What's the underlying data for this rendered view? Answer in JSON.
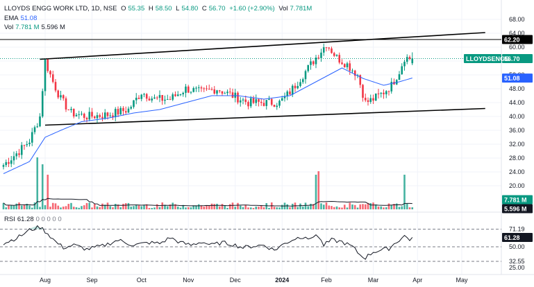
{
  "header": {
    "symbol_line": "LLOYDS ENGG WORK LTD, 1D, NSE",
    "open_label": "O",
    "open": "55.35",
    "high_label": "H",
    "high": "58.50",
    "low_label": "L",
    "low": "54.80",
    "close_label": "C",
    "close": "56.70",
    "change": "+1.60 (+2.90%)",
    "vol_label": "Vol",
    "vol": "7.781M"
  },
  "ema_legend": {
    "label": "EMA",
    "value": "51.08"
  },
  "vol_legend": {
    "label": "Vol",
    "value": "7.781 M",
    "ma": "5.596 M"
  },
  "rsi_legend": {
    "label": "RSI",
    "value": "61.28",
    "extra": "0  0  0  0  0"
  },
  "price_axis_ticks": [
    "68.00",
    "64.00",
    "60.00",
    "56.00",
    "52.00",
    "48.00",
    "44.00",
    "40.00",
    "36.00",
    "32.00",
    "28.00",
    "24.00",
    "20.00"
  ],
  "rsi_axis_ticks": [
    "71.19",
    "50.00",
    "32.55",
    "25.00"
  ],
  "tags": {
    "resistance": "62.20",
    "last_name": "LLOYDSENGG",
    "last_price": "56.70",
    "ema": "51.08",
    "volume": "7.781 M",
    "volume_ma": "5.596 M",
    "rsi": "61.28"
  },
  "time_axis": [
    "Aug",
    "Sep",
    "Oct",
    "Nov",
    "Dec",
    "2024",
    "Feb",
    "Mar",
    "Apr",
    "May"
  ],
  "colors": {
    "up": "#089981",
    "down": "#f23645",
    "ema": "#2962ff",
    "rsi": "#131722",
    "trendline": "#000000",
    "text": "#131722"
  },
  "chart_data": {
    "type": "candlestick",
    "title": "LLOYDS ENGG WORK LTD, 1D, NSE",
    "ylim": [
      18,
      70
    ],
    "rsi_ylim": [
      20,
      80
    ],
    "x_months": [
      "Aug",
      "Sep",
      "Oct",
      "Nov",
      "Dec",
      "2024",
      "Feb",
      "Mar",
      "Apr",
      "May"
    ],
    "last_ohlc": {
      "open": 55.35,
      "high": 58.5,
      "low": 54.8,
      "close": 56.7
    },
    "close_anchors": [
      [
        0,
        26
      ],
      [
        3,
        28
      ],
      [
        6,
        30
      ],
      [
        10,
        33
      ],
      [
        14,
        40
      ],
      [
        16,
        56
      ],
      [
        19,
        50
      ],
      [
        22,
        45
      ],
      [
        26,
        41
      ],
      [
        32,
        40
      ],
      [
        40,
        40.5
      ],
      [
        48,
        42
      ],
      [
        53,
        47
      ],
      [
        58,
        45
      ],
      [
        64,
        45
      ],
      [
        70,
        48
      ],
      [
        76,
        47
      ],
      [
        82,
        48
      ],
      [
        88,
        46
      ],
      [
        94,
        44
      ],
      [
        100,
        44
      ],
      [
        106,
        44
      ],
      [
        110,
        47
      ],
      [
        116,
        53
      ],
      [
        120,
        57
      ],
      [
        124,
        61
      ],
      [
        128,
        57
      ],
      [
        132,
        55
      ],
      [
        136,
        52
      ],
      [
        139,
        44
      ],
      [
        142,
        45
      ],
      [
        146,
        47
      ],
      [
        149,
        49
      ],
      [
        152,
        53
      ],
      [
        154,
        57
      ],
      [
        157,
        56.7
      ]
    ],
    "ema_anchors": [
      [
        0,
        23.5
      ],
      [
        10,
        27
      ],
      [
        16,
        34
      ],
      [
        22,
        36
      ],
      [
        30,
        38.5
      ],
      [
        40,
        39.5
      ],
      [
        50,
        41
      ],
      [
        60,
        42
      ],
      [
        70,
        44
      ],
      [
        80,
        46
      ],
      [
        90,
        46
      ],
      [
        100,
        45
      ],
      [
        110,
        46
      ],
      [
        120,
        50
      ],
      [
        130,
        54
      ],
      [
        138,
        51
      ],
      [
        146,
        49
      ],
      [
        152,
        50
      ],
      [
        157,
        51.1
      ]
    ],
    "rsi_anchors": [
      [
        0,
        54
      ],
      [
        6,
        62
      ],
      [
        10,
        70
      ],
      [
        14,
        74
      ],
      [
        17,
        66
      ],
      [
        20,
        56
      ],
      [
        23,
        49
      ],
      [
        27,
        52
      ],
      [
        32,
        47
      ],
      [
        38,
        51
      ],
      [
        44,
        58
      ],
      [
        50,
        52
      ],
      [
        56,
        55
      ],
      [
        60,
        54
      ],
      [
        64,
        61
      ],
      [
        68,
        55
      ],
      [
        72,
        52
      ],
      [
        76,
        56
      ],
      [
        80,
        52
      ],
      [
        84,
        55
      ],
      [
        88,
        53
      ],
      [
        92,
        49
      ],
      [
        96,
        51
      ],
      [
        100,
        52
      ],
      [
        104,
        46
      ],
      [
        108,
        54
      ],
      [
        112,
        60
      ],
      [
        116,
        63
      ],
      [
        118,
        58
      ],
      [
        120,
        66
      ],
      [
        123,
        52
      ],
      [
        126,
        58
      ],
      [
        130,
        56
      ],
      [
        134,
        50
      ],
      [
        137,
        40
      ],
      [
        139,
        37
      ],
      [
        142,
        44
      ],
      [
        145,
        46
      ],
      [
        148,
        48
      ],
      [
        151,
        56
      ],
      [
        154,
        63
      ],
      [
        156,
        59
      ],
      [
        157,
        61.3
      ]
    ],
    "volume_spikes": [
      [
        13,
        15
      ],
      [
        15,
        13
      ],
      [
        17,
        10
      ],
      [
        120,
        10
      ],
      [
        121,
        11
      ],
      [
        154,
        10
      ]
    ],
    "trendline_upper": {
      "start": [
        14,
        56.5
      ],
      "end": [
        185,
        64.2
      ]
    },
    "trendline_lower": {
      "start": [
        16,
        37.5
      ],
      "end": [
        185,
        42.3
      ]
    },
    "resistance_level": 62.2,
    "last_price": 56.7,
    "ema_last": 51.08,
    "rsi_last": 61.28,
    "rsi_levels": [
      71.19,
      50.0,
      32.55,
      25.0
    ],
    "volume_last": "7.781M",
    "volume_ma": "5.596M"
  }
}
